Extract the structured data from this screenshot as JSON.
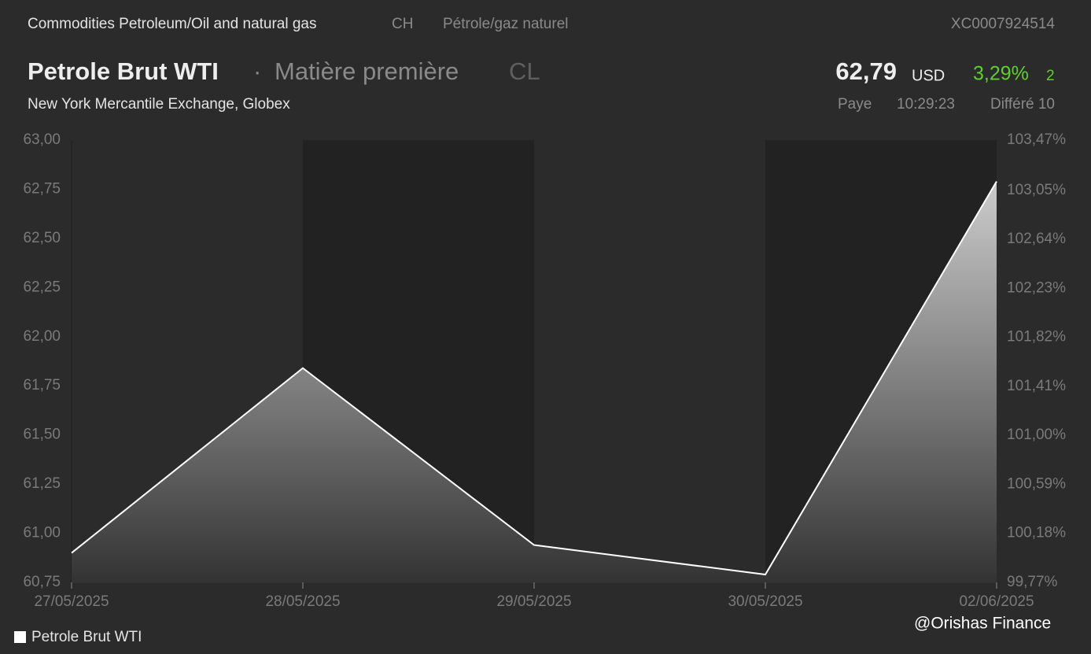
{
  "header": {
    "path": "Commodities Petroleum/Oil and natural gas",
    "country": "CH",
    "sector": "Pétrole/gaz naturel",
    "isin": "XC0007924514",
    "name": "Petrole Brut WTI",
    "separator": "·",
    "kind": "Matière première",
    "ticker": "CL",
    "price": "62,79",
    "currency": "USD",
    "change": "3,29%",
    "change_extra": "2",
    "exchange": "New York Mercantile Exchange, Globex",
    "status": "Paye",
    "time": "10:29:23",
    "delay": "Différé 10"
  },
  "chart_data": {
    "type": "area",
    "categories": [
      "27/05/2025",
      "28/05/2025",
      "29/05/2025",
      "30/05/2025",
      "02/06/2025"
    ],
    "series": [
      {
        "name": "Petrole Brut WTI",
        "color": "#ffffff",
        "values": [
          60.9,
          61.84,
          60.94,
          60.79,
          62.79
        ]
      }
    ],
    "ylim": [
      60.75,
      63.0
    ],
    "yticks": [
      {
        "value": 60.75,
        "label": "60,75"
      },
      {
        "value": 61.0,
        "label": "61,00"
      },
      {
        "value": 61.25,
        "label": "61,25"
      },
      {
        "value": 61.5,
        "label": "61,50"
      },
      {
        "value": 61.75,
        "label": "61,75"
      },
      {
        "value": 62.0,
        "label": "62,00"
      },
      {
        "value": 62.25,
        "label": "62,25"
      },
      {
        "value": 62.5,
        "label": "62,50"
      },
      {
        "value": 62.75,
        "label": "62,75"
      },
      {
        "value": 63.0,
        "label": "63,00"
      }
    ],
    "y2lim": [
      99.77,
      103.47
    ],
    "y2ticks": [
      {
        "value": 99.77,
        "label": "99,77%"
      },
      {
        "value": 100.18,
        "label": "100,18%"
      },
      {
        "value": 100.59,
        "label": "100,59%"
      },
      {
        "value": 101.0,
        "label": "101,00%"
      },
      {
        "value": 101.41,
        "label": "101,41%"
      },
      {
        "value": 101.82,
        "label": "101,82%"
      },
      {
        "value": 102.23,
        "label": "102,23%"
      },
      {
        "value": 102.64,
        "label": "102,64%"
      },
      {
        "value": 103.05,
        "label": "103,05%"
      },
      {
        "value": 103.47,
        "label": "103,47%"
      }
    ],
    "grid": false,
    "legend": "bottom-left"
  },
  "watermark": "@Orishas Finance"
}
